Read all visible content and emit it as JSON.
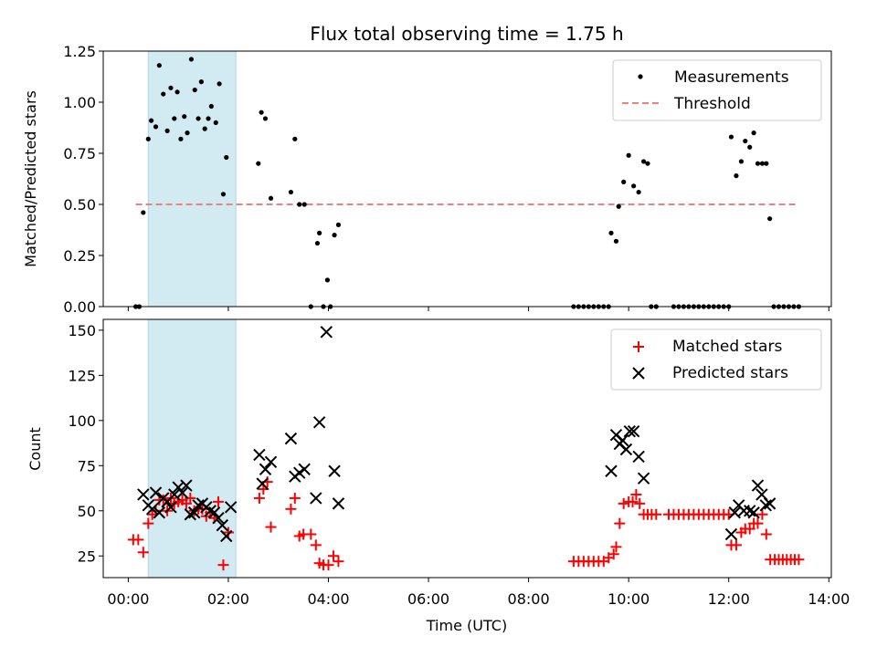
{
  "figure": {
    "title": "Flux total observing time = 1.75 h",
    "xlabel": "Time (UTC)",
    "xticks": [
      {
        "h": 0,
        "label": "00:00"
      },
      {
        "h": 2,
        "label": "02:00"
      },
      {
        "h": 4,
        "label": "04:00"
      },
      {
        "h": 6,
        "label": "06:00"
      },
      {
        "h": 8,
        "label": "08:00"
      },
      {
        "h": 10,
        "label": "10:00"
      },
      {
        "h": 12,
        "label": "12:00"
      },
      {
        "h": 14,
        "label": "14:00"
      }
    ],
    "xlim": [
      -0.5,
      14.05
    ],
    "observing_span": [
      0.4,
      2.15
    ],
    "span_color": "#add8e6"
  },
  "chart_data": [
    {
      "type": "scatter",
      "ylabel": "Matched/Predicted stars",
      "ylim": [
        0,
        1.25
      ],
      "yticks": [
        0,
        0.25,
        0.5,
        0.75,
        1.0,
        1.25
      ],
      "ytick_labels": [
        "0.00",
        "0.25",
        "0.50",
        "0.75",
        "1.00",
        "1.25"
      ],
      "legend": {
        "position": "top-right",
        "items": [
          {
            "label": "Measurements",
            "kind": "dot",
            "color": "#000000"
          },
          {
            "label": "Threshold",
            "kind": "dash",
            "color": "#f08080"
          }
        ]
      },
      "threshold": {
        "y": 0.5,
        "x": [
          0.15,
          13.4
        ],
        "color": "#f08080"
      },
      "series": [
        {
          "name": "Measurements",
          "color": "#000000",
          "points": [
            [
              0.15,
              0
            ],
            [
              0.22,
              0
            ],
            [
              0.3,
              0.46
            ],
            [
              0.4,
              0.82
            ],
            [
              0.46,
              0.91
            ],
            [
              0.55,
              0.88
            ],
            [
              0.62,
              1.18
            ],
            [
              0.7,
              1.04
            ],
            [
              0.78,
              0.86
            ],
            [
              0.85,
              1.07
            ],
            [
              0.92,
              0.92
            ],
            [
              0.98,
              1.05
            ],
            [
              1.05,
              0.82
            ],
            [
              1.12,
              0.93
            ],
            [
              1.18,
              0.85
            ],
            [
              1.26,
              1.21
            ],
            [
              1.33,
              1.06
            ],
            [
              1.4,
              0.92
            ],
            [
              1.46,
              1.1
            ],
            [
              1.53,
              0.87
            ],
            [
              1.6,
              0.92
            ],
            [
              1.66,
              0.98
            ],
            [
              1.75,
              0.9
            ],
            [
              1.82,
              1.09
            ],
            [
              1.9,
              0.55
            ],
            [
              1.96,
              0.73
            ],
            [
              2.6,
              0.7
            ],
            [
              2.66,
              0.95
            ],
            [
              2.74,
              0.92
            ],
            [
              2.85,
              0.53
            ],
            [
              3.25,
              0.56
            ],
            [
              3.33,
              0.82
            ],
            [
              3.42,
              0.5
            ],
            [
              3.52,
              0.5
            ],
            [
              3.65,
              0
            ],
            [
              3.78,
              0.31
            ],
            [
              3.82,
              0.36
            ],
            [
              3.9,
              0
            ],
            [
              3.98,
              0.13
            ],
            [
              4.04,
              0
            ],
            [
              4.12,
              0.35
            ],
            [
              4.2,
              0.4
            ],
            [
              8.9,
              0
            ],
            [
              9.0,
              0
            ],
            [
              9.1,
              0
            ],
            [
              9.2,
              0
            ],
            [
              9.3,
              0
            ],
            [
              9.4,
              0
            ],
            [
              9.5,
              0
            ],
            [
              9.6,
              0
            ],
            [
              9.65,
              0.36
            ],
            [
              9.75,
              0.32
            ],
            [
              9.8,
              0.49
            ],
            [
              9.9,
              0.61
            ],
            [
              10.0,
              0.74
            ],
            [
              10.1,
              0.59
            ],
            [
              10.2,
              0.56
            ],
            [
              10.3,
              0.71
            ],
            [
              10.38,
              0.7
            ],
            [
              10.45,
              0
            ],
            [
              10.55,
              0
            ],
            [
              10.9,
              0
            ],
            [
              11.0,
              0
            ],
            [
              11.1,
              0
            ],
            [
              11.2,
              0
            ],
            [
              11.3,
              0
            ],
            [
              11.4,
              0
            ],
            [
              11.5,
              0
            ],
            [
              11.6,
              0
            ],
            [
              11.7,
              0
            ],
            [
              11.8,
              0
            ],
            [
              11.9,
              0
            ],
            [
              12.0,
              0
            ],
            [
              12.05,
              0.83
            ],
            [
              12.15,
              0.64
            ],
            [
              12.25,
              0.71
            ],
            [
              12.33,
              0.81
            ],
            [
              12.42,
              0.78
            ],
            [
              12.5,
              0.85
            ],
            [
              12.58,
              0.7
            ],
            [
              12.67,
              0.7
            ],
            [
              12.75,
              0.7
            ],
            [
              12.82,
              0.43
            ],
            [
              12.9,
              0
            ],
            [
              13.0,
              0
            ],
            [
              13.1,
              0
            ],
            [
              13.2,
              0
            ],
            [
              13.3,
              0
            ],
            [
              13.4,
              0
            ]
          ]
        }
      ]
    },
    {
      "type": "scatter",
      "ylabel": "Count",
      "ylim": [
        13,
        156
      ],
      "yticks": [
        25,
        50,
        75,
        100,
        125,
        150
      ],
      "ytick_labels": [
        "25",
        "50",
        "75",
        "100",
        "125",
        "150"
      ],
      "legend": {
        "position": "top-right",
        "items": [
          {
            "label": "Matched stars",
            "kind": "plus",
            "color": "#ff0000"
          },
          {
            "label": "Predicted stars",
            "kind": "x",
            "color": "#000000"
          }
        ]
      },
      "series": [
        {
          "name": "Matched stars",
          "color": "#ff0000",
          "marker": "plus",
          "points": [
            [
              0.1,
              34
            ],
            [
              0.2,
              34
            ],
            [
              0.3,
              27
            ],
            [
              0.4,
              43
            ],
            [
              0.48,
              48
            ],
            [
              0.55,
              50
            ],
            [
              0.62,
              56
            ],
            [
              0.7,
              56
            ],
            [
              0.78,
              50
            ],
            [
              0.85,
              57
            ],
            [
              0.92,
              54
            ],
            [
              1.0,
              55
            ],
            [
              1.08,
              56
            ],
            [
              1.16,
              54
            ],
            [
              1.24,
              57
            ],
            [
              1.32,
              50
            ],
            [
              1.4,
              51
            ],
            [
              1.48,
              51
            ],
            [
              1.56,
              47
            ],
            [
              1.64,
              49
            ],
            [
              1.72,
              46
            ],
            [
              1.8,
              55
            ],
            [
              1.9,
              20
            ],
            [
              2.0,
              38
            ],
            [
              2.62,
              57
            ],
            [
              2.7,
              62
            ],
            [
              2.78,
              66
            ],
            [
              2.85,
              41
            ],
            [
              3.25,
              51
            ],
            [
              3.33,
              57
            ],
            [
              3.42,
              36
            ],
            [
              3.5,
              37
            ],
            [
              3.65,
              37
            ],
            [
              3.75,
              31
            ],
            [
              3.82,
              21
            ],
            [
              3.9,
              20
            ],
            [
              4.0,
              20
            ],
            [
              4.1,
              25
            ],
            [
              4.2,
              22
            ],
            [
              8.9,
              22
            ],
            [
              9.0,
              22
            ],
            [
              9.1,
              22
            ],
            [
              9.2,
              22
            ],
            [
              9.3,
              22
            ],
            [
              9.4,
              22
            ],
            [
              9.5,
              22
            ],
            [
              9.6,
              24
            ],
            [
              9.7,
              26
            ],
            [
              9.75,
              30
            ],
            [
              9.82,
              43
            ],
            [
              9.9,
              54
            ],
            [
              10.0,
              55
            ],
            [
              10.08,
              55
            ],
            [
              10.15,
              59
            ],
            [
              10.22,
              54
            ],
            [
              10.3,
              48
            ],
            [
              10.38,
              48
            ],
            [
              10.46,
              48
            ],
            [
              10.55,
              48
            ],
            [
              10.8,
              48
            ],
            [
              10.9,
              48
            ],
            [
              11.0,
              48
            ],
            [
              11.1,
              48
            ],
            [
              11.2,
              48
            ],
            [
              11.3,
              48
            ],
            [
              11.4,
              48
            ],
            [
              11.5,
              48
            ],
            [
              11.6,
              48
            ],
            [
              11.7,
              48
            ],
            [
              11.8,
              48
            ],
            [
              11.9,
              48
            ],
            [
              12.0,
              48
            ],
            [
              12.05,
              31
            ],
            [
              12.15,
              31
            ],
            [
              12.25,
              38
            ],
            [
              12.33,
              40
            ],
            [
              12.42,
              40
            ],
            [
              12.5,
              43
            ],
            [
              12.58,
              43
            ],
            [
              12.67,
              48
            ],
            [
              12.75,
              37
            ],
            [
              12.83,
              23
            ],
            [
              12.92,
              23
            ],
            [
              13.0,
              23
            ],
            [
              13.08,
              23
            ],
            [
              13.16,
              23
            ],
            [
              13.24,
              23
            ],
            [
              13.32,
              23
            ],
            [
              13.4,
              23
            ]
          ]
        },
        {
          "name": "Predicted stars",
          "color": "#000000",
          "marker": "x",
          "points": [
            [
              0.3,
              59
            ],
            [
              0.4,
              53
            ],
            [
              0.48,
              51
            ],
            [
              0.55,
              60
            ],
            [
              0.62,
              49
            ],
            [
              0.7,
              57
            ],
            [
              0.78,
              55
            ],
            [
              0.85,
              52
            ],
            [
              0.92,
              59
            ],
            [
              1.0,
              63
            ],
            [
              1.08,
              60
            ],
            [
              1.16,
              64
            ],
            [
              1.24,
              48
            ],
            [
              1.32,
              49
            ],
            [
              1.4,
              53
            ],
            [
              1.48,
              54
            ],
            [
              1.56,
              52
            ],
            [
              1.64,
              50
            ],
            [
              1.72,
              49
            ],
            [
              1.8,
              46
            ],
            [
              1.88,
              42
            ],
            [
              1.96,
              36
            ],
            [
              2.05,
              52
            ],
            [
              2.62,
              81
            ],
            [
              2.68,
              65
            ],
            [
              2.74,
              73
            ],
            [
              2.85,
              77
            ],
            [
              3.25,
              90
            ],
            [
              3.33,
              69
            ],
            [
              3.42,
              71
            ],
            [
              3.52,
              73
            ],
            [
              3.75,
              57
            ],
            [
              3.82,
              99
            ],
            [
              3.96,
              149
            ],
            [
              4.12,
              72
            ],
            [
              4.2,
              54
            ],
            [
              9.65,
              72
            ],
            [
              9.75,
              92
            ],
            [
              9.82,
              87
            ],
            [
              9.88,
              89
            ],
            [
              9.95,
              84
            ],
            [
              10.02,
              94
            ],
            [
              10.1,
              94
            ],
            [
              10.2,
              80
            ],
            [
              10.3,
              68
            ],
            [
              12.05,
              37
            ],
            [
              12.12,
              49
            ],
            [
              12.2,
              53
            ],
            [
              12.3,
              50
            ],
            [
              12.42,
              50
            ],
            [
              12.5,
              49
            ],
            [
              12.58,
              64
            ],
            [
              12.66,
              59
            ],
            [
              12.74,
              53
            ],
            [
              12.82,
              54
            ]
          ]
        }
      ]
    }
  ]
}
